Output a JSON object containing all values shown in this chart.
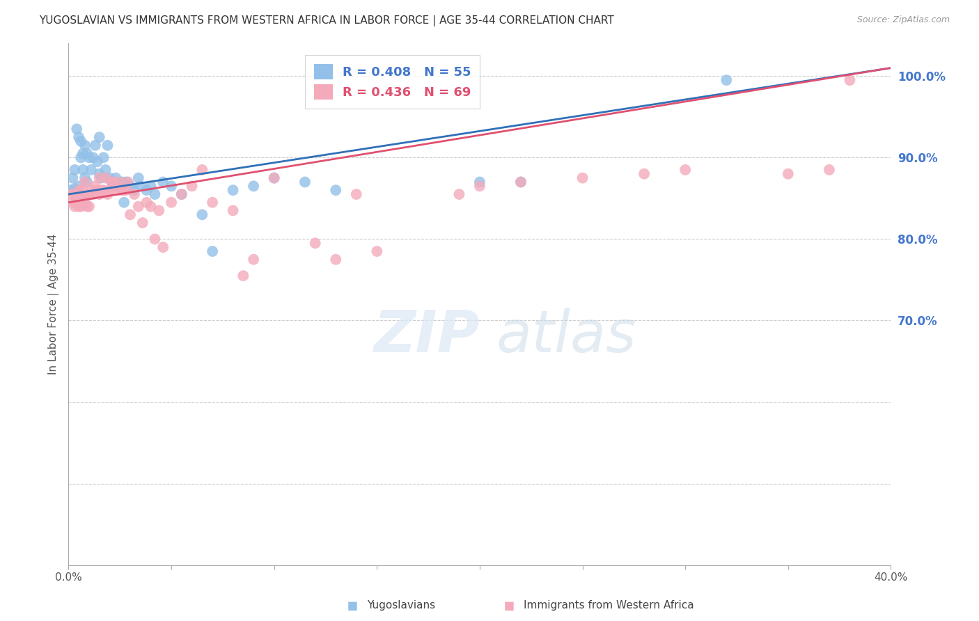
{
  "title": "YUGOSLAVIAN VS IMMIGRANTS FROM WESTERN AFRICA IN LABOR FORCE | AGE 35-44 CORRELATION CHART",
  "source": "Source: ZipAtlas.com",
  "ylabel": "In Labor Force | Age 35-44",
  "xlim": [
    0.0,
    0.4
  ],
  "ylim": [
    0.4,
    1.04
  ],
  "xticks": [
    0.0,
    0.05,
    0.1,
    0.15,
    0.2,
    0.25,
    0.3,
    0.35,
    0.4
  ],
  "xtick_labels_show": [
    "0.0%",
    "",
    "",
    "",
    "",
    "",
    "",
    "",
    "40.0%"
  ],
  "yticks": [
    0.4,
    0.5,
    0.6,
    0.7,
    0.8,
    0.9,
    1.0
  ],
  "ytick_labels": [
    "",
    "",
    "",
    "70.0%",
    "80.0%",
    "90.0%",
    "100.0%"
  ],
  "blue_color": "#92C0E8",
  "pink_color": "#F4AABB",
  "blue_line_color": "#3070B8",
  "pink_line_color": "#E05070",
  "blue_R": 0.408,
  "blue_N": 55,
  "pink_R": 0.436,
  "pink_N": 69,
  "blue_line_x0": 0.0,
  "blue_line_y0": 0.855,
  "blue_line_x1": 0.4,
  "blue_line_y1": 1.01,
  "pink_line_x0": 0.0,
  "pink_line_y0": 0.845,
  "pink_line_x1": 0.4,
  "pink_line_y1": 1.01,
  "blue_scatter_x": [
    0.001,
    0.002,
    0.003,
    0.003,
    0.004,
    0.005,
    0.005,
    0.006,
    0.006,
    0.007,
    0.007,
    0.008,
    0.008,
    0.009,
    0.009,
    0.01,
    0.01,
    0.011,
    0.012,
    0.013,
    0.014,
    0.015,
    0.015,
    0.016,
    0.017,
    0.018,
    0.019,
    0.02,
    0.021,
    0.022,
    0.023,
    0.025,
    0.026,
    0.027,
    0.028,
    0.03,
    0.032,
    0.034,
    0.035,
    0.038,
    0.04,
    0.042,
    0.046,
    0.05,
    0.055,
    0.065,
    0.07,
    0.08,
    0.09,
    0.1,
    0.115,
    0.13,
    0.2,
    0.22,
    0.32
  ],
  "blue_scatter_y": [
    0.86,
    0.875,
    0.885,
    0.862,
    0.935,
    0.865,
    0.925,
    0.9,
    0.92,
    0.885,
    0.905,
    0.875,
    0.915,
    0.87,
    0.905,
    0.855,
    0.9,
    0.885,
    0.9,
    0.915,
    0.895,
    0.88,
    0.925,
    0.875,
    0.9,
    0.885,
    0.915,
    0.875,
    0.87,
    0.865,
    0.875,
    0.865,
    0.87,
    0.845,
    0.87,
    0.865,
    0.86,
    0.875,
    0.865,
    0.86,
    0.865,
    0.855,
    0.87,
    0.865,
    0.855,
    0.83,
    0.785,
    0.86,
    0.865,
    0.875,
    0.87,
    0.86,
    0.87,
    0.87,
    0.995
  ],
  "pink_scatter_x": [
    0.001,
    0.002,
    0.003,
    0.003,
    0.004,
    0.004,
    0.005,
    0.005,
    0.006,
    0.006,
    0.007,
    0.007,
    0.008,
    0.008,
    0.009,
    0.009,
    0.01,
    0.01,
    0.011,
    0.012,
    0.013,
    0.014,
    0.015,
    0.015,
    0.016,
    0.017,
    0.018,
    0.019,
    0.02,
    0.021,
    0.022,
    0.023,
    0.024,
    0.025,
    0.026,
    0.027,
    0.028,
    0.029,
    0.03,
    0.032,
    0.034,
    0.036,
    0.038,
    0.04,
    0.042,
    0.044,
    0.046,
    0.05,
    0.055,
    0.06,
    0.065,
    0.07,
    0.08,
    0.085,
    0.09,
    0.1,
    0.12,
    0.13,
    0.14,
    0.15,
    0.19,
    0.2,
    0.22,
    0.25,
    0.28,
    0.3,
    0.35,
    0.37,
    0.38
  ],
  "pink_scatter_y": [
    0.855,
    0.845,
    0.855,
    0.84,
    0.845,
    0.85,
    0.84,
    0.86,
    0.85,
    0.84,
    0.855,
    0.86,
    0.845,
    0.87,
    0.855,
    0.84,
    0.855,
    0.84,
    0.86,
    0.855,
    0.865,
    0.86,
    0.855,
    0.875,
    0.86,
    0.86,
    0.875,
    0.855,
    0.86,
    0.87,
    0.87,
    0.865,
    0.86,
    0.87,
    0.86,
    0.86,
    0.86,
    0.87,
    0.83,
    0.855,
    0.84,
    0.82,
    0.845,
    0.84,
    0.8,
    0.835,
    0.79,
    0.845,
    0.855,
    0.865,
    0.885,
    0.845,
    0.835,
    0.755,
    0.775,
    0.875,
    0.795,
    0.775,
    0.855,
    0.785,
    0.855,
    0.865,
    0.87,
    0.875,
    0.88,
    0.885,
    0.88,
    0.885,
    0.995
  ]
}
